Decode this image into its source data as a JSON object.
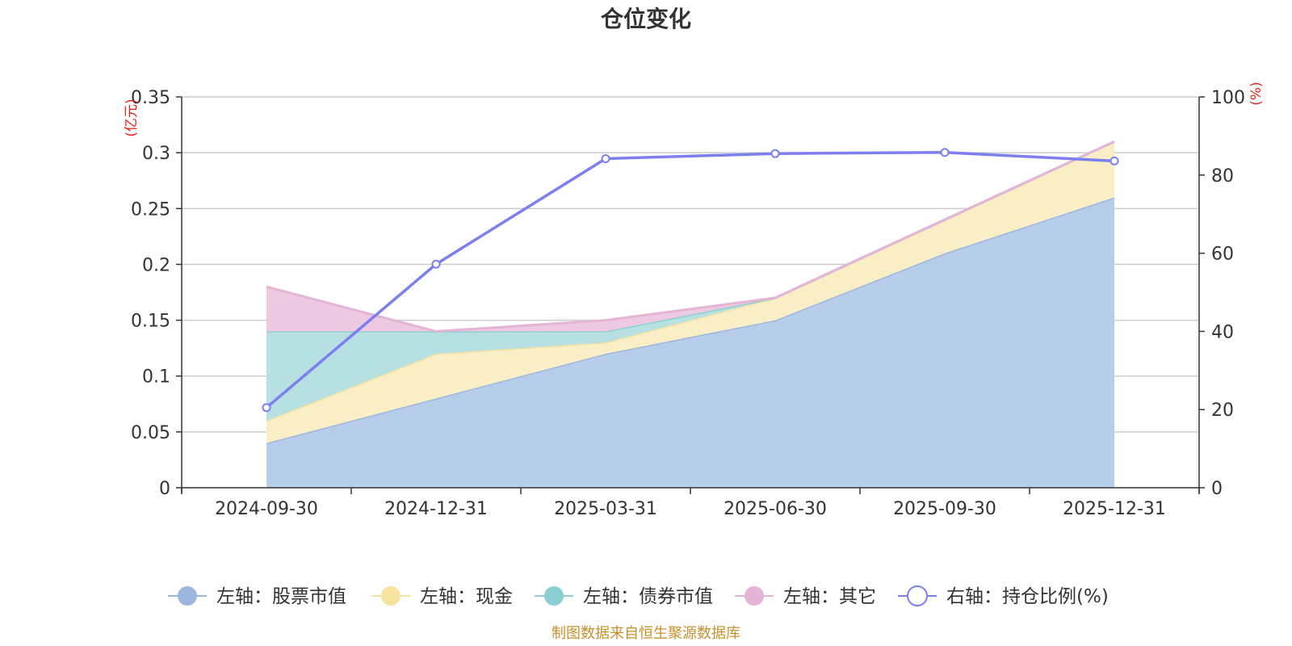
{
  "chart_data": {
    "type": "area",
    "title": "仓位变化",
    "categories": [
      "2024-09-30",
      "2024-12-31",
      "2025-03-31",
      "2025-06-30",
      "2025-09-30",
      "2025-12-31"
    ],
    "left_axis": {
      "unit": "(亿元)",
      "range": [
        0,
        0.35
      ],
      "ticks": [
        0,
        0.05,
        0.1,
        0.15,
        0.2,
        0.25,
        0.3,
        0.35
      ],
      "tick_labels": [
        "0",
        "0.05",
        "0.1",
        "0.15",
        "0.2",
        "0.25",
        "0.3",
        "0.35"
      ]
    },
    "right_axis": {
      "unit": "(%)",
      "range": [
        0,
        100
      ],
      "ticks": [
        0,
        20,
        40,
        60,
        80,
        100
      ],
      "tick_labels": [
        "0",
        "20",
        "40",
        "60",
        "80",
        "100"
      ]
    },
    "series": [
      {
        "name": "左轴：股票市值",
        "axis": "left",
        "stacked": true,
        "values": [
          0.04,
          0.08,
          0.12,
          0.15,
          0.21,
          0.26
        ],
        "line_color": "#9bb7e0",
        "fill_color": "#b8cdea"
      },
      {
        "name": "左轴：现金",
        "axis": "left",
        "stacked": true,
        "values": [
          0.02,
          0.04,
          0.01,
          0.02,
          0.03,
          0.05
        ],
        "line_color": "#f7e3a0",
        "fill_color": "#faeec6"
      },
      {
        "name": "左轴：债券市值",
        "axis": "left",
        "stacked": true,
        "values": [
          0.08,
          0.02,
          0.01,
          0.0,
          0.0,
          0.0
        ],
        "line_color": "#8ccfd2",
        "fill_color": "#b6e0e1"
      },
      {
        "name": "左轴：其它",
        "axis": "left",
        "stacked": true,
        "values": [
          0.04,
          0.0,
          0.01,
          0.0,
          0.0,
          0.0
        ],
        "line_color": "#e5b3d6",
        "fill_color": "#eecae2"
      },
      {
        "name": "右轴：持仓比例(%)",
        "axis": "right",
        "type": "line",
        "values": [
          20.5,
          57.2,
          84.2,
          85.5,
          85.8,
          83.6
        ],
        "line_color": "#7b7ff0"
      }
    ],
    "legend_position": "bottom-center",
    "grid": true
  },
  "footer": {
    "source_text": "制图数据来自恒生聚源数据库"
  }
}
